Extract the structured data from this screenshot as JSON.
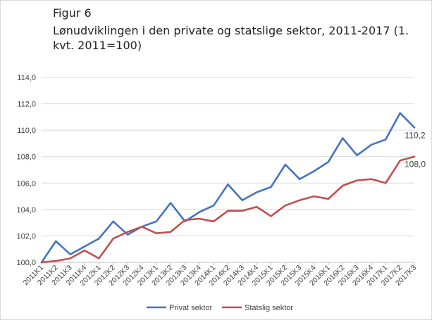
{
  "caption": {
    "label": "Figur 6",
    "title": "Lønudviklingen i den private og statslige sektor, 2011-2017 (1. kvt. 2011=100)"
  },
  "chart_data": {
    "type": "line",
    "categories": [
      "2011K1",
      "2011K2",
      "2011K3",
      "2011K4",
      "2012K1",
      "2012K2",
      "2012K3",
      "2012K4",
      "2013K1",
      "2013K2",
      "2013K3",
      "2013K4",
      "2014K1",
      "2014K2",
      "2014K3",
      "2014K4",
      "2015K1",
      "2015K2",
      "2015K3",
      "2015K4",
      "2016K1",
      "2016K2",
      "2016K3",
      "2016K4",
      "2017K1",
      "2017K2",
      "2017K3"
    ],
    "series": [
      {
        "name": "Privat sektor",
        "color": "#4472C4",
        "values": [
          100.0,
          101.6,
          100.6,
          101.2,
          101.8,
          103.1,
          102.1,
          102.7,
          103.1,
          104.5,
          103.1,
          103.8,
          104.3,
          105.9,
          104.7,
          105.3,
          105.7,
          107.4,
          106.3,
          106.9,
          107.6,
          109.4,
          108.1,
          108.9,
          109.3,
          111.3,
          110.2
        ],
        "end_label": "110,2"
      },
      {
        "name": "Statslig sektor",
        "color": "#C0504D",
        "values": [
          100.0,
          100.1,
          100.3,
          100.9,
          100.3,
          101.8,
          102.3,
          102.7,
          102.2,
          102.3,
          103.2,
          103.3,
          103.1,
          103.9,
          103.9,
          104.2,
          103.5,
          104.3,
          104.7,
          105.0,
          104.8,
          105.8,
          106.2,
          106.3,
          106.0,
          107.7,
          108.0
        ],
        "end_label": "108,0"
      }
    ],
    "ylim": [
      100,
      114
    ],
    "yticks": [
      "100,0",
      "102,0",
      "104,0",
      "106,0",
      "108,0",
      "110,0",
      "112,0",
      "114,0"
    ],
    "grid": true,
    "legend_position": "bottom"
  }
}
